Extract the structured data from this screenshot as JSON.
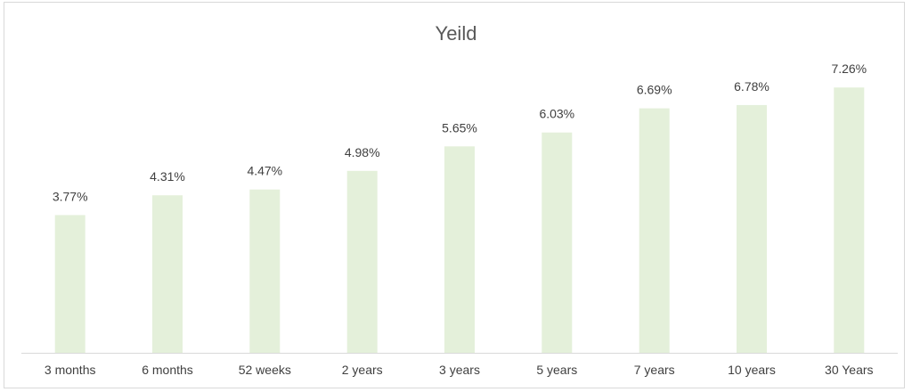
{
  "chart_data": {
    "type": "bar",
    "title": "Yeild",
    "categories": [
      "3 months",
      "6 months",
      "52 weeks",
      "2 years",
      "3 years",
      "5 years",
      "7 years",
      "10 years",
      "30 Years"
    ],
    "values": [
      3.77,
      4.31,
      4.47,
      4.98,
      5.65,
      6.03,
      6.69,
      6.78,
      7.26
    ],
    "data_labels": [
      "3.77%",
      "4.31%",
      "4.47%",
      "4.98%",
      "5.65%",
      "6.03%",
      "6.69%",
      "6.78%",
      "7.26%"
    ],
    "ylim": [
      0,
      7.9
    ],
    "grid": false,
    "legend": "none",
    "bar_color": "#e4f0da",
    "axis_color": "#d9d9d9"
  }
}
